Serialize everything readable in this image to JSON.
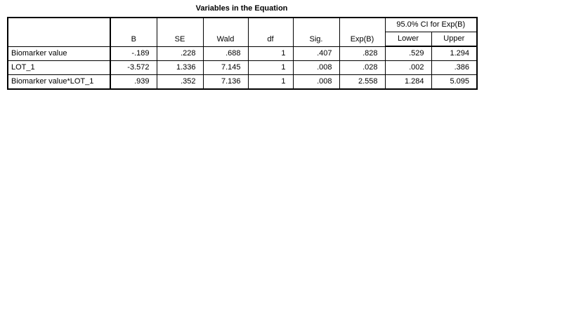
{
  "table": {
    "title": "Variables in the Equation",
    "ci_group_label": "95.0% CI for Exp(B)",
    "columns": [
      "B",
      "SE",
      "Wald",
      "df",
      "Sig.",
      "Exp(B)",
      "Lower",
      "Upper"
    ],
    "rows": [
      {
        "label": "Biomarker value",
        "cells": [
          "-.189",
          ".228",
          ".688",
          "1",
          ".407",
          ".828",
          ".529",
          "1.294"
        ]
      },
      {
        "label": "LOT_1",
        "cells": [
          "-3.572",
          "1.336",
          "7.145",
          "1",
          ".008",
          ".028",
          ".002",
          ".386"
        ]
      },
      {
        "label": "Biomarker value*LOT_1",
        "cells": [
          ".939",
          ".352",
          "7.136",
          "1",
          ".008",
          "2.558",
          "1.284",
          "5.095"
        ]
      }
    ]
  }
}
